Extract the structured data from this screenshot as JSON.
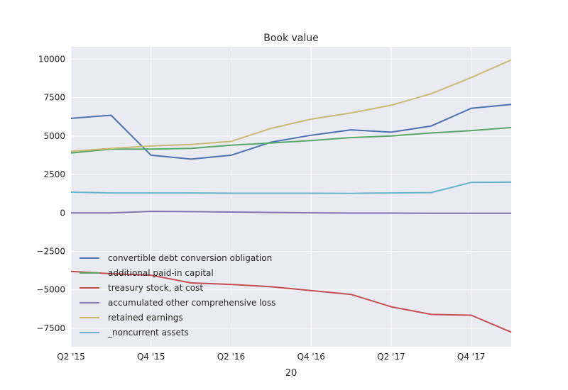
{
  "chart_data": {
    "type": "line",
    "title": "Book value",
    "xlabel": "20",
    "ylabel": "",
    "x": [
      "Q2 '15",
      "Q3 '15",
      "Q4 '15",
      "Q1 '16",
      "Q2 '16",
      "Q3 '16",
      "Q4 '16",
      "Q1 '17",
      "Q2 '17",
      "Q3 '17",
      "Q4 '17",
      "Q1 '18"
    ],
    "xtick_labels": [
      "Q2 '15",
      "Q4 '15",
      "Q2 '16",
      "Q4 '16",
      "Q2 '17",
      "Q4 '17"
    ],
    "xtick_indices": [
      0,
      2,
      4,
      6,
      8,
      10
    ],
    "ylim": [
      -8700,
      10800
    ],
    "yticks": [
      -7500,
      -5000,
      -2500,
      0,
      2500,
      5000,
      7500,
      10000
    ],
    "ytick_labels": [
      "−7500",
      "−5000",
      "−2500",
      "0",
      "2500",
      "5000",
      "7500",
      "10000"
    ],
    "grid": true,
    "legend_position": "lower-left",
    "series": [
      {
        "name": "convertible debt conversion obligation",
        "color": "#4c72b0",
        "values": [
          6150,
          6350,
          3750,
          3500,
          3750,
          4600,
          5050,
          5400,
          5250,
          5650,
          6800,
          7050
        ]
      },
      {
        "name": "additional paid-in capital",
        "color": "#55a868",
        "values": [
          3900,
          4150,
          4150,
          4200,
          4400,
          4550,
          4700,
          4900,
          5000,
          5200,
          5350,
          5550
        ]
      },
      {
        "name": "treasury stock, at cost",
        "color": "#c44e52",
        "values": [
          -3800,
          -3950,
          -4050,
          -4550,
          -4650,
          -4800,
          -5050,
          -5300,
          -6100,
          -6600,
          -6650,
          -7750
        ]
      },
      {
        "name": "accumulated other comprehensive loss",
        "color": "#8172b2",
        "values": [
          0,
          0,
          100,
          80,
          60,
          30,
          10,
          -10,
          -10,
          -20,
          -20,
          -20
        ]
      },
      {
        "name": "retained earnings",
        "color": "#ccb974",
        "values": [
          4000,
          4200,
          4350,
          4450,
          4650,
          5500,
          6100,
          6500,
          7000,
          7750,
          8800,
          9950
        ]
      },
      {
        "name": "_noncurrent assets",
        "color": "#64b5cd",
        "values": [
          1350,
          1300,
          1300,
          1300,
          1280,
          1280,
          1280,
          1270,
          1300,
          1320,
          1980,
          2000
        ]
      }
    ]
  }
}
